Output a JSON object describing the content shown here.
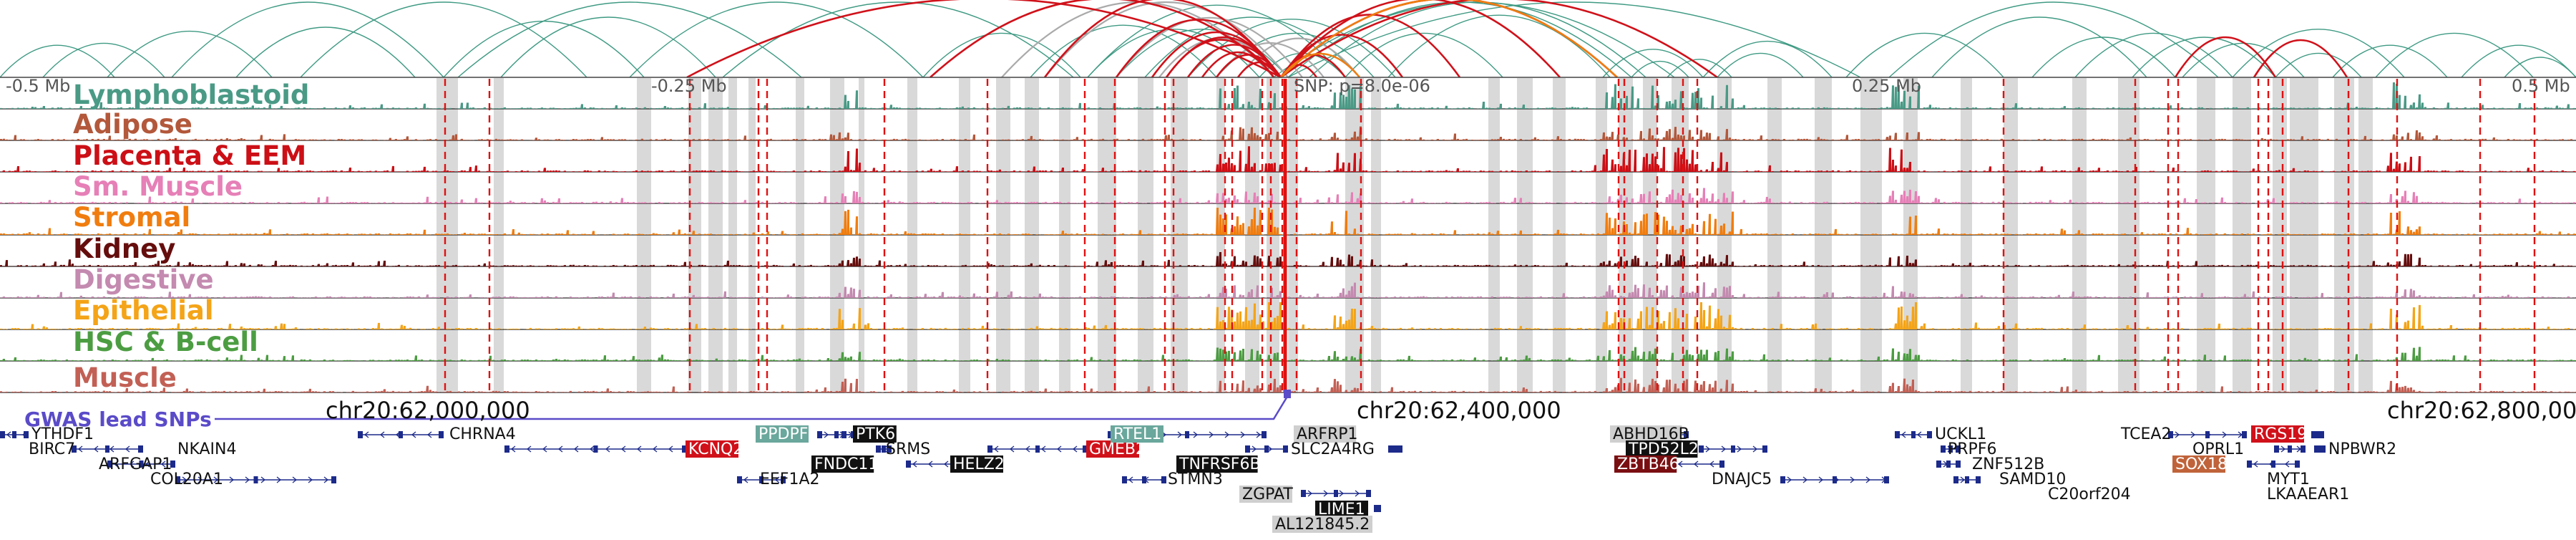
{
  "scale": {
    "left": "-0.5 Mb",
    "left_mid": "-0.25 Mb",
    "snp": "SNP: p=8.0e-06",
    "right_mid": "0.25 Mb",
    "right": "0.5 Mb"
  },
  "tracks": [
    {
      "label": "Lymphoblastoid",
      "color": "#4a9a86"
    },
    {
      "label": "Adipose",
      "color": "#b3583b"
    },
    {
      "label": "Placenta & EEM",
      "color": "#cc0f16"
    },
    {
      "label": "Sm. Muscle",
      "color": "#e680b7"
    },
    {
      "label": "Stromal",
      "color": "#f07d0f"
    },
    {
      "label": "Kidney",
      "color": "#650d0d"
    },
    {
      "label": "Digestive",
      "color": "#c48ab0"
    },
    {
      "label": "Epithelial",
      "color": "#f4a418"
    },
    {
      "label": "HSC & B-cell",
      "color": "#4c9d42"
    },
    {
      "label": "Muscle",
      "color": "#c26055"
    }
  ],
  "gwas": {
    "label": "GWAS lead SNPs",
    "color": "#5a4bc8"
  },
  "coordinates": [
    "chr20:62,000,000",
    "chr20:62,400,000",
    "chr20:62,800,000"
  ],
  "genes": [
    {
      "name": "YTHDF1",
      "style": "plain"
    },
    {
      "name": "BIRC7",
      "style": "plain"
    },
    {
      "name": "NKAIN4",
      "style": "plain"
    },
    {
      "name": "ARFGAP1",
      "style": "plain"
    },
    {
      "name": "COL20A1",
      "style": "plain"
    },
    {
      "name": "CHRNA4",
      "style": "plain"
    },
    {
      "name": "KCNQ2",
      "style": "red"
    },
    {
      "name": "EEF1A2",
      "style": "plain"
    },
    {
      "name": "PPDPF",
      "style": "teal"
    },
    {
      "name": "PTK6",
      "style": "black"
    },
    {
      "name": "SRMS",
      "style": "plain"
    },
    {
      "name": "FNDC11",
      "style": "black"
    },
    {
      "name": "HELZ2",
      "style": "black"
    },
    {
      "name": "GMEB2",
      "style": "red"
    },
    {
      "name": "STMN3",
      "style": "plain"
    },
    {
      "name": "RTEL1",
      "style": "teal"
    },
    {
      "name": "TNFRSF6B",
      "style": "black"
    },
    {
      "name": "ARFRP1",
      "style": "grey"
    },
    {
      "name": "SLC2A4RG",
      "style": "plain"
    },
    {
      "name": "ZGPAT",
      "style": "grey"
    },
    {
      "name": "LIME1",
      "style": "black"
    },
    {
      "name": "AL121845.2",
      "style": "grey"
    },
    {
      "name": "ABHD16B",
      "style": "grey"
    },
    {
      "name": "TPD52L2",
      "style": "black"
    },
    {
      "name": "ZBTB46",
      "style": "darkred"
    },
    {
      "name": "DNAJC5",
      "style": "plain"
    },
    {
      "name": "UCKL1",
      "style": "plain"
    },
    {
      "name": "PRPF6",
      "style": "plain"
    },
    {
      "name": "ZNF512B",
      "style": "plain"
    },
    {
      "name": "SAMD10",
      "style": "plain"
    },
    {
      "name": "C20orf204",
      "style": "plain"
    },
    {
      "name": "TCEA2",
      "style": "plain"
    },
    {
      "name": "RGS19",
      "style": "red"
    },
    {
      "name": "OPRL1",
      "style": "plain"
    },
    {
      "name": "NPBWR2",
      "style": "plain"
    },
    {
      "name": "SOX18",
      "style": "orange"
    },
    {
      "name": "MYT1",
      "style": "plain"
    },
    {
      "name": "LKAAEAR1",
      "style": "plain"
    }
  ],
  "colors": {
    "loop_teal": "#3f9a83",
    "loop_red": "#d0111a",
    "loop_grey": "#aaaaaa",
    "loop_orange": "#ef7d10",
    "highlight_grey": "#d9d9d9",
    "snp_line": "#e01010",
    "gene_blue": "#1c2a8a"
  }
}
